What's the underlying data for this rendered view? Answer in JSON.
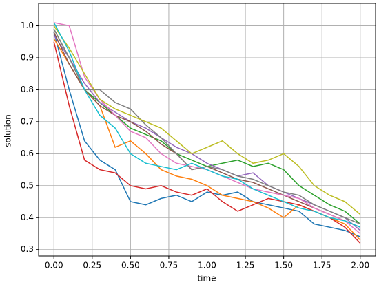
{
  "chart_data": {
    "type": "line",
    "xlabel": "time",
    "ylabel": "solution",
    "x": [
      0,
      0.1,
      0.2,
      0.3,
      0.4,
      0.5,
      0.6,
      0.7,
      0.8,
      0.9,
      1.0,
      1.1,
      1.2,
      1.3,
      1.4,
      1.5,
      1.6,
      1.7,
      1.8,
      1.9,
      2.0
    ],
    "series": [
      {
        "color": "#1f77b4",
        "values": [
          0.98,
          0.8,
          0.64,
          0.58,
          0.55,
          0.45,
          0.44,
          0.46,
          0.47,
          0.45,
          0.48,
          0.47,
          0.48,
          0.45,
          0.44,
          0.43,
          0.42,
          0.38,
          0.37,
          0.36,
          0.34
        ]
      },
      {
        "color": "#ff7f0e",
        "values": [
          0.96,
          0.88,
          0.8,
          0.75,
          0.62,
          0.64,
          0.6,
          0.55,
          0.53,
          0.52,
          0.5,
          0.47,
          0.46,
          0.45,
          0.43,
          0.4,
          0.44,
          0.42,
          0.4,
          0.38,
          0.33
        ]
      },
      {
        "color": "#2ca02c",
        "values": [
          0.99,
          0.9,
          0.8,
          0.76,
          0.72,
          0.68,
          0.66,
          0.64,
          0.6,
          0.58,
          0.56,
          0.57,
          0.58,
          0.56,
          0.57,
          0.55,
          0.5,
          0.47,
          0.44,
          0.42,
          0.38
        ]
      },
      {
        "color": "#d62728",
        "values": [
          0.95,
          0.75,
          0.58,
          0.55,
          0.54,
          0.5,
          0.49,
          0.5,
          0.48,
          0.47,
          0.49,
          0.45,
          0.42,
          0.44,
          0.46,
          0.45,
          0.44,
          0.42,
          0.4,
          0.37,
          0.32
        ]
      },
      {
        "color": "#9467bd",
        "values": [
          0.97,
          0.9,
          0.82,
          0.76,
          0.73,
          0.7,
          0.68,
          0.65,
          0.62,
          0.6,
          0.57,
          0.55,
          0.53,
          0.54,
          0.5,
          0.48,
          0.46,
          0.44,
          0.42,
          0.4,
          0.36
        ]
      },
      {
        "color": "#8c564b",
        "values": [
          0.98,
          0.88,
          0.8,
          0.75,
          0.72,
          0.7,
          0.67,
          0.63,
          0.6,
          0.55,
          0.56,
          0.54,
          0.52,
          0.51,
          0.49,
          0.47,
          0.45,
          0.43,
          0.41,
          0.39,
          0.37
        ]
      },
      {
        "color": "#e377c2",
        "values": [
          1.01,
          1.0,
          0.84,
          0.77,
          0.72,
          0.67,
          0.65,
          0.6,
          0.57,
          0.56,
          0.55,
          0.53,
          0.51,
          0.49,
          0.48,
          0.47,
          0.46,
          0.43,
          0.41,
          0.39,
          0.35
        ]
      },
      {
        "color": "#7f7f7f",
        "values": [
          0.99,
          0.9,
          0.8,
          0.8,
          0.76,
          0.74,
          0.69,
          0.65,
          0.6,
          0.55,
          0.56,
          0.55,
          0.53,
          0.52,
          0.5,
          0.48,
          0.47,
          0.44,
          0.42,
          0.4,
          0.38
        ]
      },
      {
        "color": "#bcbd22",
        "values": [
          1.0,
          0.93,
          0.85,
          0.77,
          0.74,
          0.72,
          0.7,
          0.68,
          0.64,
          0.6,
          0.62,
          0.64,
          0.6,
          0.57,
          0.58,
          0.6,
          0.56,
          0.5,
          0.47,
          0.45,
          0.41
        ]
      },
      {
        "color": "#17becf",
        "values": [
          1.01,
          0.92,
          0.8,
          0.72,
          0.68,
          0.6,
          0.57,
          0.56,
          0.55,
          0.57,
          0.55,
          0.53,
          0.52,
          0.49,
          0.47,
          0.45,
          0.43,
          0.42,
          0.4,
          0.39,
          0.37
        ]
      }
    ],
    "xlim": [
      -0.1,
      2.1
    ],
    "ylim": [
      0.28,
      1.07
    ],
    "xticks": [
      {
        "value": 0,
        "label": "0.00"
      },
      {
        "value": 0.25,
        "label": "0.25"
      },
      {
        "value": 0.5,
        "label": "0.50"
      },
      {
        "value": 0.75,
        "label": "0.75"
      },
      {
        "value": 1.0,
        "label": "1.00"
      },
      {
        "value": 1.25,
        "label": "1.25"
      },
      {
        "value": 1.5,
        "label": "1.50"
      },
      {
        "value": 1.75,
        "label": "1.75"
      },
      {
        "value": 2.0,
        "label": "2.00"
      }
    ],
    "yticks": [
      0.3,
      0.4,
      0.5,
      0.6,
      0.7,
      0.8,
      0.9,
      {
        "value": 1.0,
        "label": "1.0"
      }
    ],
    "grid": true
  }
}
